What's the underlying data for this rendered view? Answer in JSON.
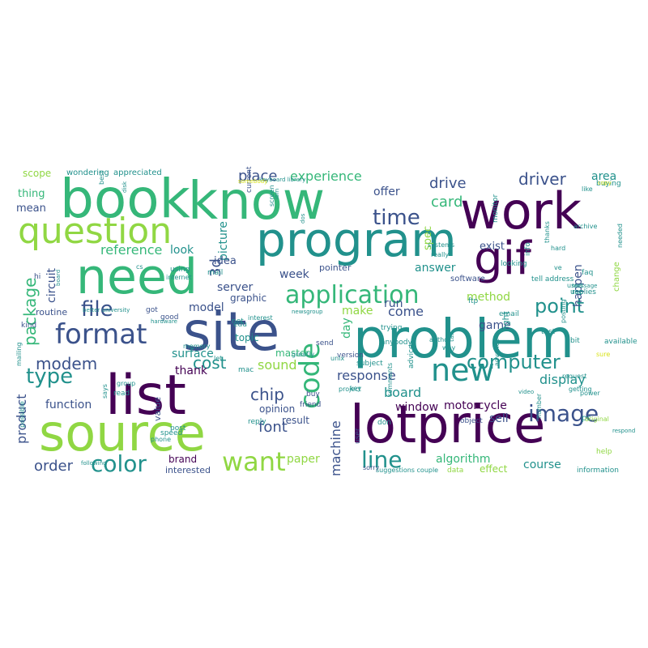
{
  "palette": {
    "dark_purple": "#440154",
    "indigo": "#3b528b",
    "teal": "#21918c",
    "green": "#35b779",
    "lime": "#90d743",
    "yellow": "#fde725",
    "pale_yellow": "#d8e219"
  },
  "words": [
    {
      "t": "book",
      "c": "green"
    },
    {
      "t": "know",
      "c": "green"
    },
    {
      "t": "work",
      "c": "dark_purple"
    },
    {
      "t": "program",
      "c": "teal"
    },
    {
      "t": "gif",
      "c": "dark_purple"
    },
    {
      "t": "question",
      "c": "lime"
    },
    {
      "t": "need",
      "c": "green"
    },
    {
      "t": "site",
      "c": "indigo"
    },
    {
      "t": "problem",
      "c": "teal"
    },
    {
      "t": "list",
      "c": "dark_purple"
    },
    {
      "t": "lotprice",
      "c": "dark_purple"
    },
    {
      "t": "source",
      "c": "lime"
    },
    {
      "t": "format",
      "c": "indigo"
    },
    {
      "t": "application",
      "c": "green"
    },
    {
      "t": "new",
      "c": "teal"
    },
    {
      "t": "file",
      "c": "indigo"
    },
    {
      "t": "time",
      "c": "indigo"
    },
    {
      "t": "code",
      "c": "green"
    },
    {
      "t": "computer",
      "c": "teal"
    },
    {
      "t": "image",
      "c": "indigo"
    },
    {
      "t": "color",
      "c": "teal"
    },
    {
      "t": "want",
      "c": "lime"
    },
    {
      "t": "line",
      "c": "teal"
    },
    {
      "t": "type",
      "c": "teal"
    },
    {
      "t": "modem",
      "c": "indigo"
    },
    {
      "t": "point",
      "c": "teal"
    },
    {
      "t": "place",
      "c": "indigo"
    },
    {
      "t": "experience",
      "c": "green"
    },
    {
      "t": "card",
      "c": "green"
    },
    {
      "t": "drive",
      "c": "indigo"
    },
    {
      "t": "driver",
      "c": "indigo"
    },
    {
      "t": "package",
      "c": "green"
    },
    {
      "t": "reference",
      "c": "green"
    },
    {
      "t": "display",
      "c": "teal"
    },
    {
      "t": "response",
      "c": "indigo"
    },
    {
      "t": "chip",
      "c": "indigo"
    },
    {
      "t": "cost",
      "c": "teal"
    },
    {
      "t": "board",
      "c": "teal"
    },
    {
      "t": "algorithm",
      "c": "green"
    },
    {
      "t": "machine",
      "c": "indigo"
    },
    {
      "t": "motorcycle",
      "c": "dark_purple"
    },
    {
      "t": "font",
      "c": "indigo"
    },
    {
      "t": "order",
      "c": "indigo"
    },
    {
      "t": "product",
      "c": "indigo"
    },
    {
      "t": "sound",
      "c": "lime"
    },
    {
      "t": "paper",
      "c": "lime"
    },
    {
      "t": "course",
      "c": "teal"
    },
    {
      "t": "window",
      "c": "dark_purple"
    },
    {
      "t": "sell",
      "c": "indigo"
    },
    {
      "t": "method",
      "c": "lime"
    },
    {
      "t": "game",
      "c": "indigo"
    },
    {
      "t": "answer",
      "c": "teal"
    },
    {
      "t": "server",
      "c": "indigo"
    },
    {
      "t": "model",
      "c": "indigo"
    },
    {
      "t": "come",
      "c": "indigo"
    },
    {
      "t": "run",
      "c": "indigo"
    },
    {
      "t": "make",
      "c": "lime"
    },
    {
      "t": "3d",
      "c": "indigo"
    },
    {
      "t": "picture",
      "c": "teal"
    },
    {
      "t": "idea",
      "c": "indigo"
    },
    {
      "t": "look",
      "c": "teal"
    },
    {
      "t": "week",
      "c": "indigo"
    },
    {
      "t": "offer",
      "c": "indigo"
    },
    {
      "t": "spec",
      "c": "lime"
    },
    {
      "t": "area",
      "c": "teal"
    },
    {
      "t": "happen",
      "c": "indigo"
    },
    {
      "t": "exist",
      "c": "indigo"
    },
    {
      "t": "thank",
      "c": "dark_purple"
    },
    {
      "t": "surface",
      "c": "teal"
    },
    {
      "t": "function",
      "c": "indigo"
    },
    {
      "t": "circuit",
      "c": "indigo"
    },
    {
      "t": "mean",
      "c": "indigo"
    },
    {
      "t": "thing",
      "c": "green"
    },
    {
      "t": "scope",
      "c": "lime"
    },
    {
      "t": "routine",
      "c": "indigo"
    },
    {
      "t": "topic",
      "c": "teal"
    },
    {
      "t": "master",
      "c": "green"
    },
    {
      "t": "opinion",
      "c": "indigo"
    },
    {
      "t": "result",
      "c": "indigo"
    },
    {
      "t": "brand",
      "c": "dark_purple"
    },
    {
      "t": "day",
      "c": "green"
    },
    {
      "t": "effect",
      "c": "lime"
    },
    {
      "t": "interested",
      "c": "indigo"
    },
    {
      "t": "value",
      "c": "indigo"
    },
    {
      "t": "graphic",
      "c": "indigo"
    },
    {
      "t": "wondering",
      "c": "teal"
    },
    {
      "t": "appreciated",
      "c": "teal"
    },
    {
      "t": "pointer",
      "c": "indigo"
    },
    {
      "t": "software",
      "c": "indigo"
    },
    {
      "t": "kind",
      "c": "indigo"
    },
    {
      "t": "hi",
      "c": "indigo"
    },
    {
      "t": "using",
      "c": "teal"
    },
    {
      "t": "mail",
      "c": "teal"
    },
    {
      "t": "edu",
      "c": "teal"
    },
    {
      "t": "post",
      "c": "teal"
    },
    {
      "t": "reply",
      "c": "teal"
    },
    {
      "t": "friend",
      "c": "indigo"
    },
    {
      "t": "user",
      "c": "indigo"
    },
    {
      "t": "version",
      "c": "indigo"
    },
    {
      "t": "send",
      "c": "indigo"
    },
    {
      "t": "info",
      "c": "teal"
    },
    {
      "t": "right",
      "c": "teal"
    },
    {
      "t": "change",
      "c": "lime"
    },
    {
      "t": "current",
      "c": "indigo"
    },
    {
      "t": "replies",
      "c": "teal"
    },
    {
      "t": "looking",
      "c": "teal"
    },
    {
      "t": "monitor",
      "c": "teal"
    },
    {
      "t": "ftp",
      "c": "teal"
    },
    {
      "t": "email",
      "c": "teal"
    },
    {
      "t": "tell address",
      "c": "teal"
    },
    {
      "t": "buying",
      "c": "teal"
    },
    {
      "t": "object",
      "c": "indigo"
    },
    {
      "t": "information",
      "c": "teal"
    },
    {
      "t": "good",
      "c": "indigo"
    },
    {
      "t": "got",
      "c": "indigo"
    },
    {
      "t": "speed",
      "c": "teal"
    },
    {
      "t": "available",
      "c": "teal"
    },
    {
      "t": "mailing",
      "c": "teal"
    },
    {
      "t": "read",
      "c": "teal"
    },
    {
      "t": "possible",
      "c": "teal"
    },
    {
      "t": "group",
      "c": "teal"
    },
    {
      "t": "buy",
      "c": "indigo"
    },
    {
      "t": "data",
      "c": "lime"
    },
    {
      "t": "anybody",
      "c": "teal"
    },
    {
      "t": "help",
      "c": "lime"
    },
    {
      "t": "pc",
      "c": "teal"
    },
    {
      "t": "faq",
      "c": "teal"
    },
    {
      "t": "don",
      "c": "teal"
    },
    {
      "t": "mac",
      "c": "teal"
    },
    {
      "t": "test",
      "c": "teal"
    },
    {
      "t": "bit",
      "c": "teal"
    },
    {
      "t": "use",
      "c": "teal"
    },
    {
      "t": "advice",
      "c": "teal"
    },
    {
      "t": "hard",
      "c": "teal"
    },
    {
      "t": "net",
      "c": "teal"
    },
    {
      "t": "keyboard library",
      "c": "teal"
    },
    {
      "t": "says",
      "c": "teal"
    },
    {
      "t": "phone",
      "c": "teal"
    },
    {
      "t": "number",
      "c": "teal"
    },
    {
      "t": "trying",
      "c": "teal"
    },
    {
      "t": "sorry",
      "c": "indigo"
    },
    {
      "t": "ve",
      "c": "teal"
    },
    {
      "t": "message",
      "c": "teal"
    },
    {
      "t": "getting",
      "c": "teal"
    },
    {
      "t": "posting",
      "c": "teal"
    },
    {
      "t": "better university",
      "c": "teal"
    },
    {
      "t": "interest",
      "c": "teal"
    },
    {
      "t": "subject",
      "c": "teal"
    },
    {
      "t": "used",
      "c": "teal"
    },
    {
      "t": "advance",
      "c": "teal"
    },
    {
      "t": "systems",
      "c": "teal"
    },
    {
      "t": "really",
      "c": "teal"
    },
    {
      "t": "project",
      "c": "teal"
    },
    {
      "t": "comments",
      "c": "teal"
    },
    {
      "t": "memory",
      "c": "teal"
    },
    {
      "t": "suggestions couple",
      "c": "teal"
    },
    {
      "t": "hardware",
      "c": "teal"
    },
    {
      "t": "newsgroup",
      "c": "teal"
    },
    {
      "t": "like",
      "c": "teal"
    },
    {
      "t": "let",
      "c": "teal"
    },
    {
      "t": "copy",
      "c": "pale_yellow"
    },
    {
      "t": "somebody",
      "c": "pale_yellow"
    },
    {
      "t": "power",
      "c": "teal"
    },
    {
      "t": "original",
      "c": "lime"
    },
    {
      "t": "respond",
      "c": "teal"
    },
    {
      "t": "request",
      "c": "teal"
    },
    {
      "t": "sure",
      "c": "pale_yellow"
    },
    {
      "t": "thanks",
      "c": "teal"
    },
    {
      "t": "archive",
      "c": "teal"
    },
    {
      "t": "author",
      "c": "teal"
    },
    {
      "t": "key",
      "c": "teal"
    },
    {
      "t": "tax",
      "c": "teal"
    },
    {
      "t": "video",
      "c": "teal"
    },
    {
      "t": "screen",
      "c": "teal"
    },
    {
      "t": "following",
      "c": "teal"
    },
    {
      "t": "board",
      "c": "teal"
    },
    {
      "t": "needed",
      "c": "teal"
    },
    {
      "t": "way",
      "c": "teal"
    },
    {
      "t": "greatly",
      "c": "teal"
    },
    {
      "t": "best",
      "c": "teal"
    },
    {
      "t": "ibm",
      "c": "teal"
    },
    {
      "t": "dos",
      "c": "teal"
    },
    {
      "t": "disk",
      "c": "teal"
    },
    {
      "t": "unix",
      "c": "teal"
    },
    {
      "t": "cs",
      "c": "teal"
    },
    {
      "t": "internet",
      "c": "teal"
    }
  ]
}
